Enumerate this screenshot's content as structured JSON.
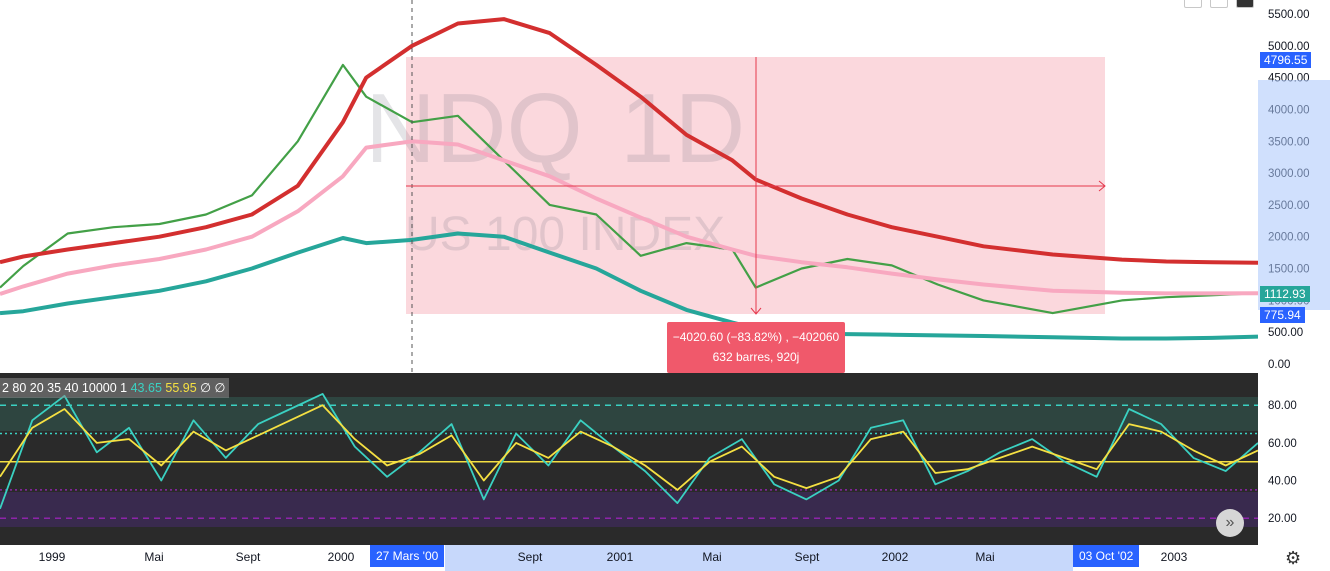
{
  "chart_data": [
    {
      "type": "line",
      "symbol": "NDQ",
      "interval": "1D",
      "description": "US 100 INDEX",
      "x": [
        "1998-12",
        "1999-01",
        "1999-03",
        "1999-05",
        "1999-07",
        "1999-09",
        "1999-11",
        "2000-01",
        "2000-03",
        "2000-04",
        "2000-06",
        "2000-08",
        "2000-10",
        "2000-12",
        "2001-02",
        "2001-04",
        "2001-06",
        "2001-08",
        "2001-09",
        "2001-11",
        "2002-01",
        "2002-03",
        "2002-05",
        "2002-07",
        "2002-10",
        "2003-01",
        "2003-03",
        "2003-05",
        "2003-07"
      ],
      "series": [
        {
          "color": "#43a047",
          "values": [
            1200,
            1540,
            2050,
            2150,
            2200,
            2350,
            2650,
            3500,
            4700,
            4200,
            3800,
            3900,
            3200,
            2500,
            2350,
            1700,
            1900,
            1800,
            1200,
            1500,
            1650,
            1550,
            1250,
            1000,
            800,
            1000,
            1050,
            1080,
            1112.93
          ]
        },
        {
          "color": "#d32f2f",
          "values": [
            1600,
            1690,
            1800,
            1900,
            2000,
            2150,
            2350,
            2800,
            3800,
            4500,
            5000,
            5350,
            5420,
            5200,
            4700,
            4200,
            3600,
            3200,
            2900,
            2600,
            2350,
            2150,
            2000,
            1850,
            1720,
            1640,
            1610,
            1600,
            1590
          ]
        },
        {
          "color": "#f8a8c0",
          "values": [
            1100,
            1220,
            1420,
            1550,
            1650,
            1800,
            2000,
            2400,
            2950,
            3400,
            3500,
            3450,
            3200,
            2950,
            2600,
            2300,
            2000,
            1800,
            1700,
            1600,
            1520,
            1420,
            1330,
            1250,
            1150,
            1120,
            1110,
            1110,
            1112
          ]
        },
        {
          "color": "#26a69a",
          "values": [
            800,
            830,
            950,
            1050,
            1150,
            1300,
            1500,
            1750,
            1980,
            1900,
            1950,
            2050,
            2000,
            1750,
            1500,
            1150,
            850,
            650,
            560,
            480,
            470,
            460,
            450,
            440,
            420,
            400,
            400,
            410,
            430
          ]
        }
      ],
      "ylim": [
        0,
        5500
      ],
      "y_ticks": [
        "0.00",
        "500.00",
        "1000.00",
        "1500.00",
        "2000.00",
        "2500.00",
        "3000.00",
        "3500.00",
        "4000.00",
        "4500.00",
        "5000.00",
        "5500.00"
      ],
      "x_ticks": [
        "1999",
        "Mai",
        "Sept",
        "2000",
        "27 Mars '00",
        "Sept",
        "2001",
        "Mai",
        "Sept",
        "2002",
        "Mai",
        "03 Oct '02",
        "2003"
      ],
      "price_labels": {
        "upper": "4796.55",
        "last": "1112.93",
        "lower": "775.94"
      },
      "measure": {
        "line1": "−4020.60 (−83.82%) , −402060",
        "line2": "632 barres, 920j"
      },
      "grid": false
    },
    {
      "type": "line",
      "legend": {
        "params": "2 80 20 35 40 10000 1",
        "v1": "43.65",
        "v2": "55.95",
        "v3": "∅",
        "v4": "∅"
      },
      "ylim": [
        10,
        95
      ],
      "y_ticks": [
        "20.00",
        "40.00",
        "60.00",
        "80.00"
      ],
      "levels": [
        20,
        35,
        50,
        65,
        80
      ],
      "series": [
        {
          "color": "#3ad1c2",
          "values": [
            25,
            72,
            85,
            55,
            68,
            40,
            72,
            52,
            70,
            78,
            86,
            58,
            42,
            55,
            70,
            30,
            65,
            48,
            72,
            58,
            45,
            28,
            52,
            62,
            38,
            30,
            40,
            68,
            72,
            38,
            45,
            55,
            62,
            50,
            42,
            78,
            70,
            52,
            45,
            60
          ]
        },
        {
          "color": "#f5e042",
          "values": [
            42,
            68,
            78,
            60,
            62,
            48,
            66,
            56,
            64,
            72,
            80,
            62,
            48,
            54,
            64,
            40,
            60,
            52,
            66,
            58,
            48,
            35,
            50,
            58,
            42,
            36,
            42,
            62,
            66,
            44,
            46,
            52,
            58,
            52,
            46,
            70,
            66,
            56,
            48,
            56
          ]
        }
      ]
    }
  ],
  "ui": {
    "scroll_label": "»",
    "settings_icon": "gear-icon",
    "chevron_icon": "double-chevron-right-icon"
  }
}
